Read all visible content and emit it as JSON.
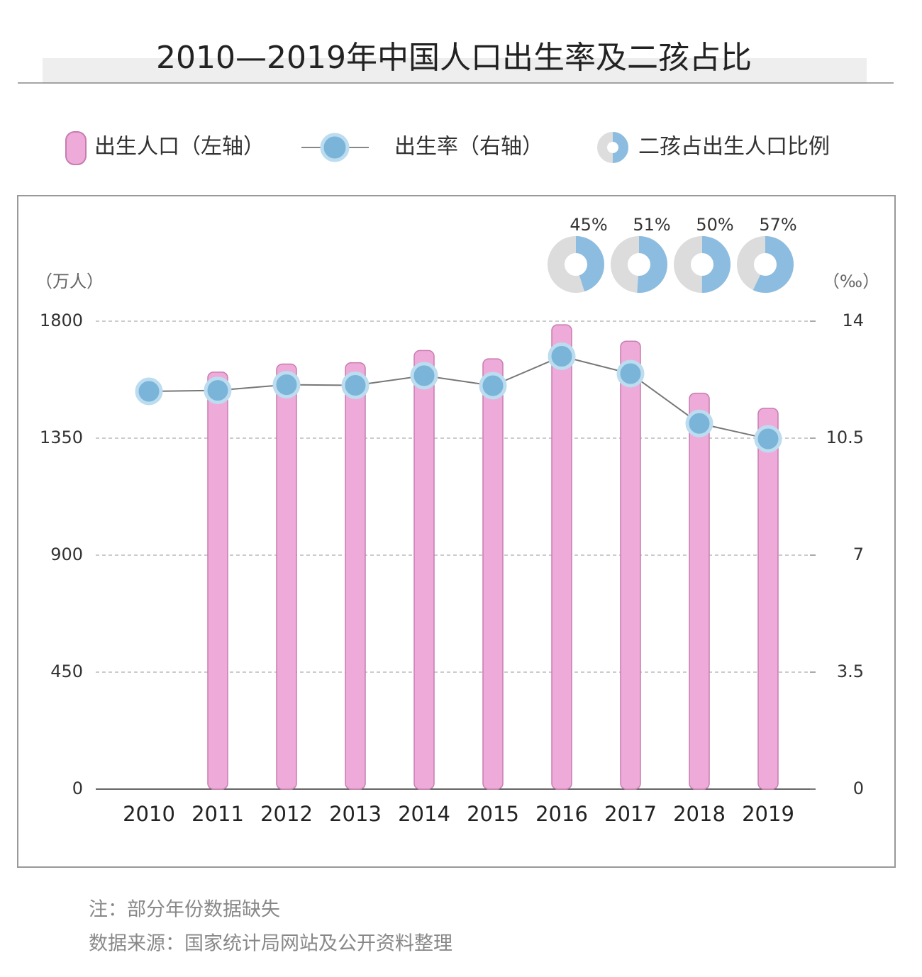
{
  "chart_data": {
    "type": "bar",
    "title": "2010—2019年中国人口出生率及二孩占比",
    "categories": [
      "2010",
      "2011",
      "2012",
      "2013",
      "2014",
      "2015",
      "2016",
      "2017",
      "2018",
      "2019"
    ],
    "series": [
      {
        "name": "出生人口（左轴）",
        "type": "bar",
        "color": "#eeaad8",
        "values": [
          null,
          1604,
          1635,
          1640,
          1687,
          1655,
          1786,
          1723,
          1523,
          1465
        ]
      },
      {
        "name": "出生率（右轴）",
        "type": "line",
        "axis": "y2",
        "color": "#7ab4d8",
        "values": [
          11.9,
          11.93,
          12.1,
          12.08,
          12.37,
          12.07,
          12.95,
          12.43,
          10.94,
          10.48
        ]
      }
    ],
    "second_child_share": {
      "name": "二孩占出生人口比例",
      "color": "#8cbde0",
      "values": [
        45,
        51,
        50,
        57
      ],
      "value_labels": [
        "45%",
        "51%",
        "50%",
        "57%"
      ]
    },
    "y_unit": "（万人）",
    "y2_unit": "（‰）",
    "ylim": [
      0,
      1800
    ],
    "yticks": [
      0,
      450,
      900,
      1350,
      1800
    ],
    "y2lim": [
      0,
      14
    ],
    "y2ticks": [
      0,
      3.5,
      7,
      10.5,
      14
    ],
    "grid": true,
    "notes": [
      "注：部分年份数据缺失",
      "数据来源：国家统计局网站及公开资料整理"
    ]
  }
}
